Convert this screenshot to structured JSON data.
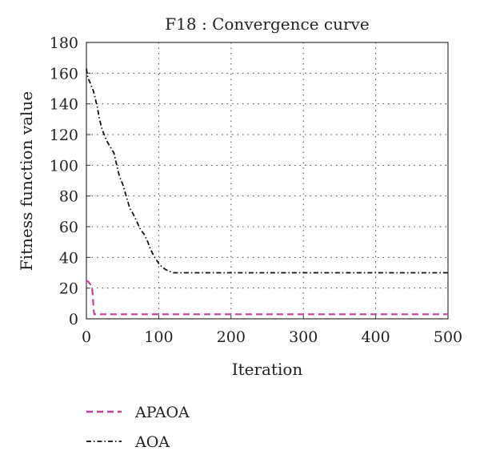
{
  "chart_data": {
    "type": "line",
    "title": "F18 : Convergence curve",
    "xlabel": "Iteration",
    "ylabel": "Fitness function value",
    "xlim": [
      0,
      500
    ],
    "ylim": [
      0,
      180
    ],
    "xticks": [
      "0",
      "100",
      "200",
      "300",
      "400",
      "500"
    ],
    "yticks": [
      "0",
      "20",
      "40",
      "60",
      "80",
      "100",
      "120",
      "140",
      "160",
      "180"
    ],
    "grid": true,
    "legend_position": "bottom-left-outside",
    "series": [
      {
        "name": "APAOA",
        "color": "#c0409a",
        "dash": "dashed",
        "x": [
          0,
          3,
          6,
          8,
          9,
          10,
          11,
          500
        ],
        "y": [
          25,
          24,
          22,
          20,
          14,
          6,
          3,
          3
        ]
      },
      {
        "name": "AOA",
        "color": "#111111",
        "dash": "dash-dot",
        "x": [
          0,
          2,
          5,
          10,
          15,
          18,
          22,
          28,
          33,
          38,
          42,
          45,
          48,
          50,
          55,
          60,
          65,
          70,
          75,
          80,
          85,
          88,
          92,
          96,
          100,
          104,
          110,
          115,
          120,
          125,
          140,
          200,
          300,
          400,
          500
        ],
        "y": [
          163,
          157,
          154,
          148,
          138,
          130,
          123,
          116,
          112,
          108,
          100,
          94,
          90,
          88,
          80,
          72,
          68,
          63,
          58,
          55,
          50,
          46,
          42,
          39,
          36,
          34,
          32,
          31,
          30,
          30,
          30,
          30,
          30,
          30,
          30
        ]
      }
    ]
  }
}
